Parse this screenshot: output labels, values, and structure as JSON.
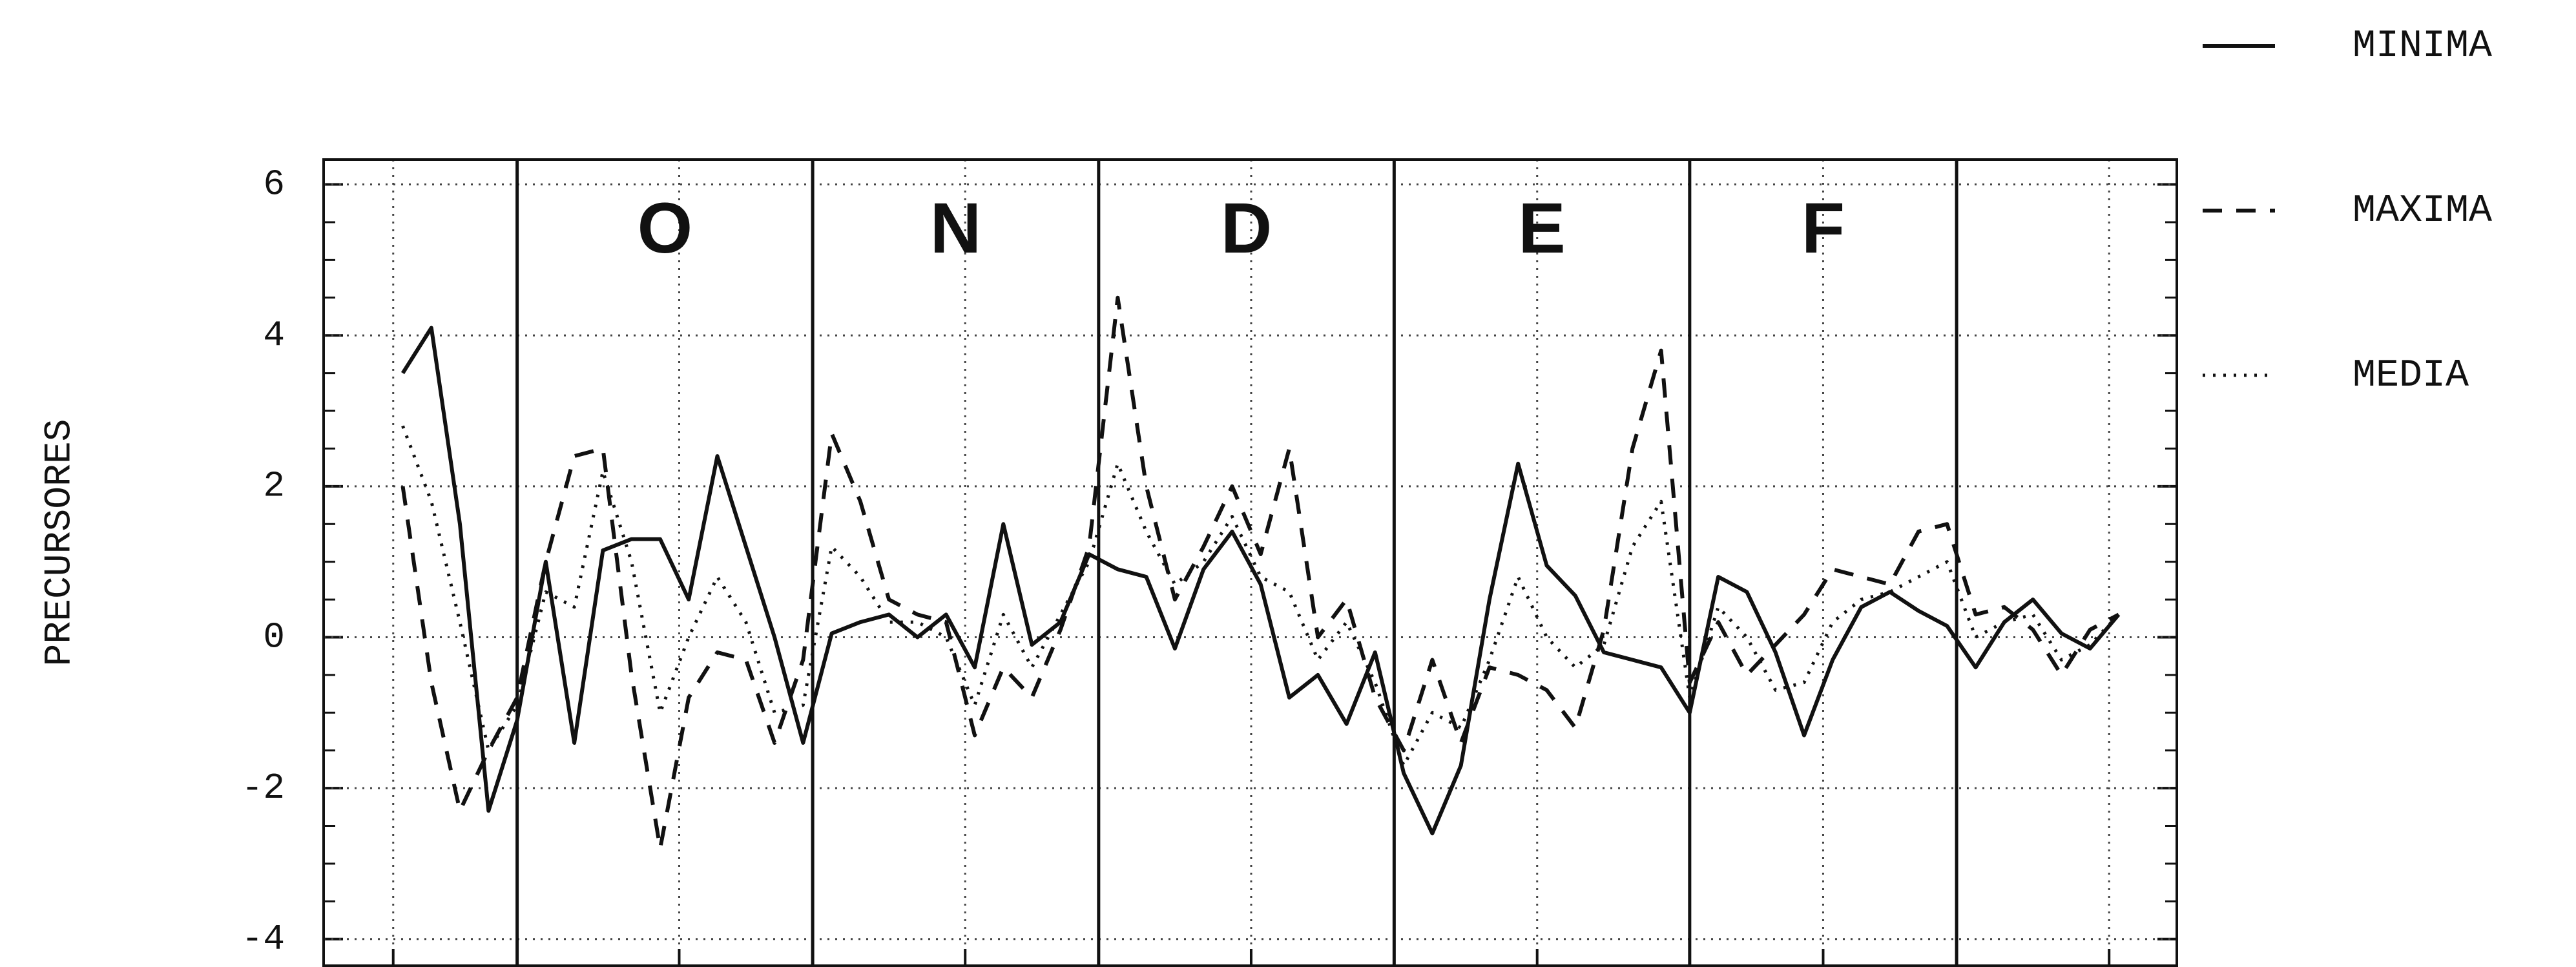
{
  "chart_data": {
    "type": "line",
    "ylabel": "PRECURSORES",
    "months": [
      "O",
      "N",
      "D",
      "E",
      "F"
    ],
    "month_bounds": [
      0,
      31,
      61,
      92,
      123,
      151
    ],
    "xlim": [
      -20.3,
      174.1
    ],
    "xticks": [
      -13,
      17,
      47,
      77,
      107,
      137,
      167
    ],
    "ylim": [
      -4.37,
      6.33
    ],
    "yticks": [
      -4,
      -2,
      0,
      2,
      4,
      6
    ],
    "grid": true,
    "legend": "right",
    "x": [
      -12,
      -9,
      -6,
      -3,
      0,
      3,
      6,
      9,
      12,
      15,
      18,
      21,
      24,
      27,
      30,
      33,
      36,
      39,
      42,
      45,
      48,
      51,
      54,
      57,
      60,
      63,
      66,
      69,
      72,
      75,
      78,
      81,
      84,
      87,
      90,
      93,
      96,
      99,
      102,
      105,
      108,
      111,
      114,
      117,
      120,
      123,
      126,
      129,
      132,
      135,
      138,
      141,
      144,
      147,
      150,
      153,
      156,
      159,
      162,
      165,
      168
    ],
    "series": [
      {
        "name": "MINIMA",
        "color": "#111111",
        "style": "solid",
        "values": [
          3.5,
          4.1,
          1.5,
          -2.3,
          -1.1,
          1.0,
          -1.4,
          1.15,
          1.3,
          1.3,
          0.5,
          2.4,
          1.2,
          0.0,
          -1.4,
          0.05,
          0.2,
          0.3,
          0.0,
          0.3,
          -0.4,
          1.5,
          -0.1,
          0.2,
          1.1,
          0.9,
          0.8,
          -0.15,
          0.9,
          1.4,
          0.7,
          -0.8,
          -0.5,
          -1.15,
          -0.2,
          -1.8,
          -2.6,
          -1.7,
          0.5,
          2.3,
          0.95,
          0.55,
          -0.2,
          -0.3,
          -0.4,
          -1.0,
          0.8,
          0.6,
          -0.2,
          -1.3,
          -0.3,
          0.4,
          0.6,
          0.35,
          0.15,
          -0.4,
          0.2,
          0.5,
          0.05,
          -0.15,
          0.3
        ]
      },
      {
        "name": "MAXIMA",
        "color": "#111111",
        "style": "dashed",
        "values": [
          2.0,
          -0.6,
          -2.3,
          -1.5,
          -0.8,
          1.0,
          2.4,
          2.5,
          -0.5,
          -2.8,
          -0.8,
          -0.2,
          -0.3,
          -1.4,
          -0.3,
          2.7,
          1.8,
          0.5,
          0.3,
          0.2,
          -1.3,
          -0.4,
          -0.8,
          0.1,
          1.2,
          4.5,
          2.0,
          0.5,
          1.2,
          2.0,
          1.1,
          2.5,
          0.0,
          0.5,
          -0.8,
          -1.5,
          -0.3,
          -1.4,
          -0.4,
          -0.5,
          -0.7,
          -1.2,
          0.1,
          2.5,
          3.8,
          -0.6,
          0.2,
          -0.5,
          -0.1,
          0.3,
          0.9,
          0.8,
          0.7,
          1.4,
          1.5,
          0.3,
          0.4,
          0.1,
          -0.5,
          0.1,
          0.3
        ]
      },
      {
        "name": "MEDIA",
        "color": "#111111",
        "style": "dotted",
        "values": [
          2.8,
          1.8,
          0.2,
          -1.5,
          -0.9,
          0.6,
          0.4,
          2.2,
          1.0,
          -1.0,
          0.0,
          0.8,
          0.2,
          -1.0,
          -0.9,
          1.2,
          0.8,
          0.2,
          0.2,
          0.0,
          -0.9,
          0.3,
          -0.4,
          0.3,
          1.0,
          2.3,
          1.4,
          0.7,
          1.0,
          1.6,
          0.8,
          0.6,
          -0.3,
          0.2,
          -0.6,
          -1.7,
          -1.0,
          -1.2,
          -0.3,
          0.8,
          0.0,
          -0.4,
          -0.1,
          1.2,
          1.8,
          -0.8,
          0.4,
          0.0,
          -0.7,
          -0.6,
          0.2,
          0.5,
          0.6,
          0.8,
          1.0,
          0.0,
          0.2,
          0.3,
          -0.3,
          -0.1,
          0.3
        ]
      }
    ]
  }
}
